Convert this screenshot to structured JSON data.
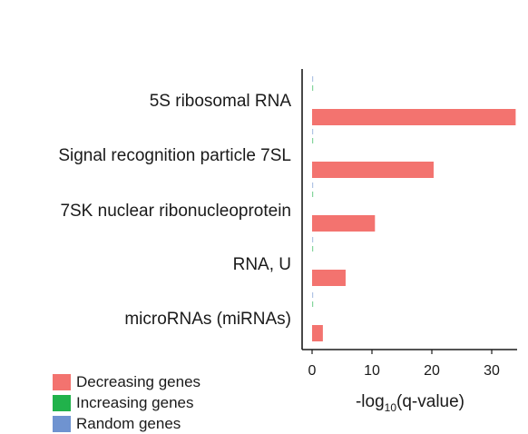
{
  "chart_data": {
    "type": "bar",
    "orientation": "horizontal",
    "categories": [
      "5S ribosomal RNA",
      "Signal recognition particle 7SL",
      "7SK nuclear ribonucleoprotein",
      "RNA, U",
      "microRNAs (miRNAs)"
    ],
    "series": [
      {
        "name": "Decreasing genes",
        "color": "#f3736f",
        "values": [
          34,
          20.3,
          10.5,
          5.6,
          1.8
        ]
      },
      {
        "name": "Increasing genes",
        "color": "#21b24b",
        "values": [
          0.1,
          0.1,
          0.1,
          0.1,
          0.1
        ]
      },
      {
        "name": "Random genes",
        "color": "#6f93d0",
        "values": [
          0.1,
          0.1,
          0.1,
          0.1,
          0.1
        ]
      }
    ],
    "xlabel_main": "-log",
    "xlabel_sub": "10",
    "xlabel_tail": "(q-value)",
    "xlim": [
      0,
      35
    ],
    "xticks": [
      0,
      10,
      20,
      30
    ],
    "xtick_labels": [
      "0",
      "10",
      "20",
      "30"
    ],
    "grid": false,
    "legend_position": "bottom-left"
  }
}
